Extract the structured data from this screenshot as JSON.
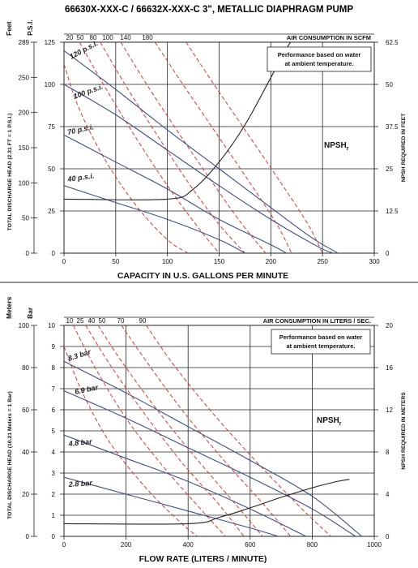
{
  "title": "66630X-XXX-C / 66632X-XXX-C 3\", METALLIC DIAPHRAGM PUMP",
  "colors": {
    "performance": "#3c4f86",
    "air": "#e2362c",
    "npsh": "#222222",
    "grid": "#222222"
  },
  "chart_data": [
    {
      "type": "line",
      "xlabel": "CAPACITY IN U.S. GALLONS PER MINUTE",
      "xlim": [
        0,
        300
      ],
      "x_ticks": [
        "0",
        "50",
        "100",
        "150",
        "200",
        "250",
        "300"
      ],
      "ylim": [
        0,
        125
      ],
      "y_unit_left_outer": "Feet",
      "y_unit_left_inner": "P.S.I.",
      "y_ticks_feet": [
        "0",
        "50",
        "100",
        "150",
        "200",
        "250",
        "289"
      ],
      "y_ticks_psi": [
        "0",
        "25",
        "50",
        "75",
        "100",
        "125"
      ],
      "ylabel_left": "TOTAL DISCHARGE HEAD (2.31 FT = 1 P.S.I.)",
      "ylabel_right": "NPSH REQUIRED IN FEET",
      "y_ticks_right": [
        "0",
        "12.5",
        "25",
        "37.5",
        "50",
        "62.5"
      ],
      "top_axis_label": "AIR CONSUMPTION IN SCFM",
      "top_ticks": [
        "20",
        "50",
        "80",
        "100",
        "140",
        "180"
      ],
      "note": [
        "Performance based on water",
        "at ambient temperature."
      ],
      "npsh_label": "NPSH",
      "npsh_sub": "r",
      "series": [
        {
          "name": "120 p.s.i.",
          "x": [
            0,
            50,
            100,
            150,
            200,
            240,
            265
          ],
          "y": [
            120,
            97,
            73,
            50,
            27,
            9,
            0
          ]
        },
        {
          "name": "100 p.s.i.",
          "x": [
            0,
            50,
            100,
            150,
            200,
            245,
            260
          ],
          "y": [
            100,
            82,
            61,
            40,
            20,
            4,
            0
          ]
        },
        {
          "name": "70 p.s.i.",
          "x": [
            0,
            50,
            100,
            150,
            200,
            215
          ],
          "y": [
            70,
            54,
            38,
            20,
            5,
            0
          ]
        },
        {
          "name": "40 p.s.i.",
          "x": [
            0,
            50,
            100,
            150,
            175
          ],
          "y": [
            40,
            30,
            20,
            8,
            0
          ]
        }
      ],
      "air_curves": [
        {
          "name": "20",
          "x": [
            0,
            15,
            40,
            70,
            100,
            120
          ],
          "y": [
            112,
            85,
            55,
            28,
            8,
            0
          ]
        },
        {
          "name": "50",
          "x": [
            15,
            40,
            70,
            100,
            130,
            150
          ],
          "y": [
            125,
            98,
            68,
            40,
            15,
            0
          ]
        },
        {
          "name": "80",
          "x": [
            35,
            60,
            90,
            120,
            150,
            175
          ],
          "y": [
            125,
            99,
            70,
            42,
            17,
            0
          ]
        },
        {
          "name": "100",
          "x": [
            55,
            80,
            110,
            140,
            170,
            195
          ],
          "y": [
            125,
            100,
            72,
            45,
            19,
            0
          ]
        },
        {
          "name": "140",
          "x": [
            88,
            115,
            145,
            175,
            205,
            220
          ],
          "y": [
            125,
            100,
            73,
            46,
            18,
            0
          ]
        },
        {
          "name": "180",
          "x": [
            118,
            145,
            175,
            205,
            235,
            250
          ],
          "y": [
            125,
            100,
            73,
            46,
            18,
            0
          ]
        }
      ],
      "npsh_curve": {
        "x": [
          0,
          100,
          125,
          150,
          175,
          200,
          220,
          240
        ],
        "y": [
          16,
          16,
          19,
          27,
          38,
          52,
          63,
          70
        ]
      }
    },
    {
      "type": "line",
      "xlabel": "FLOW RATE (LITERS / MINUTE)",
      "xlim": [
        0,
        1000
      ],
      "x_ticks": [
        "0",
        "200",
        "400",
        "600",
        "800",
        "1000"
      ],
      "ylim": [
        0,
        10
      ],
      "y_unit_left_outer": "Meters",
      "y_unit_left_inner": "Bar",
      "y_ticks_meters": [
        "0",
        "20",
        "40",
        "60",
        "80",
        "100"
      ],
      "y_ticks_bar": [
        "0",
        "1",
        "2",
        "3",
        "4",
        "5",
        "6",
        "7",
        "8",
        "9",
        "10"
      ],
      "ylabel_left": "TOTAL DISCHARGE HEAD (10.21 Meters = 1 Bar)",
      "ylabel_right": "NPSH REQUIRED IN METERS",
      "y_ticks_right": [
        "0",
        "4",
        "8",
        "12",
        "16",
        "20"
      ],
      "top_axis_label": "AIR CONSUMPTION IN LITERS / SEC.",
      "top_ticks": [
        "10",
        "25",
        "40",
        "50",
        "70",
        "90"
      ],
      "note": [
        "Performance based on water",
        "at ambient temperature."
      ],
      "npsh_label": "NPSH",
      "npsh_sub": "r",
      "series": [
        {
          "name": "8.3 bar",
          "x": [
            0,
            200,
            400,
            600,
            800,
            960
          ],
          "y": [
            8.3,
            6.8,
            5.2,
            3.6,
            1.9,
            0
          ]
        },
        {
          "name": "6.9 bar",
          "x": [
            0,
            200,
            400,
            600,
            800,
            940
          ],
          "y": [
            6.9,
            5.6,
            4.2,
            2.8,
            1.3,
            0
          ]
        },
        {
          "name": "4.8 bar",
          "x": [
            0,
            200,
            400,
            600,
            780
          ],
          "y": [
            4.8,
            3.7,
            2.6,
            1.3,
            0
          ]
        },
        {
          "name": "2.8 bar",
          "x": [
            0,
            200,
            400,
            600,
            690
          ],
          "y": [
            2.8,
            2.0,
            1.2,
            0.4,
            0
          ]
        }
      ],
      "air_curves": [
        {
          "name": "10",
          "x": [
            0,
            60,
            150,
            270,
            380,
            430
          ],
          "y": [
            9.0,
            6.8,
            4.4,
            2.2,
            0.6,
            0
          ]
        },
        {
          "name": "25",
          "x": [
            30,
            100,
            200,
            320,
            440,
            520
          ],
          "y": [
            10,
            8.0,
            5.6,
            3.3,
            1.3,
            0
          ]
        },
        {
          "name": "40",
          "x": [
            70,
            150,
            260,
            380,
            500,
            580
          ],
          "y": [
            10,
            8.1,
            5.8,
            3.5,
            1.5,
            0
          ]
        },
        {
          "name": "50",
          "x": [
            110,
            190,
            300,
            420,
            560,
            640
          ],
          "y": [
            10,
            8.2,
            6.0,
            3.8,
            1.4,
            0
          ]
        },
        {
          "name": "70",
          "x": [
            185,
            270,
            380,
            510,
            650,
            730
          ],
          "y": [
            10,
            8.2,
            6.0,
            3.7,
            1.4,
            0
          ]
        },
        {
          "name": "90",
          "x": [
            265,
            350,
            470,
            610,
            760,
            860
          ],
          "y": [
            10,
            8.2,
            6.0,
            3.7,
            1.4,
            0
          ]
        }
      ],
      "npsh_curve": {
        "x": [
          0,
          400,
          500,
          600,
          700,
          800,
          880,
          920
        ],
        "y": [
          1.2,
          1.2,
          1.8,
          2.7,
          3.7,
          4.6,
          5.2,
          5.4
        ]
      }
    }
  ]
}
